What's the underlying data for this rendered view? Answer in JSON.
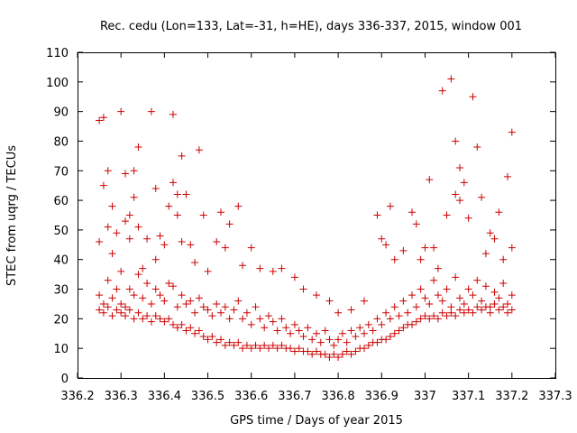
{
  "chart_data": {
    "type": "scatter",
    "title": "Rec. cedu (Lon=133, Lat=-31, h=HE), days 336-337, 2015, window 001",
    "xlabel": "GPS time / Days of year 2015",
    "ylabel": "STEC from uqrg / TECUs",
    "xlim": [
      336.2,
      337.3
    ],
    "ylim": [
      0,
      110
    ],
    "xticks": [
      "336.2",
      "336.3",
      "336.4",
      "336.5",
      "336.6",
      "336.7",
      "336.8",
      "336.9",
      "337",
      "337.1",
      "337.2",
      "337.3"
    ],
    "yticks": [
      "0",
      "10",
      "20",
      "30",
      "40",
      "50",
      "60",
      "70",
      "80",
      "90",
      "100",
      "110"
    ],
    "grid": false,
    "legend": "none",
    "marker": "plus",
    "color": "#cc0000",
    "series": [
      {
        "points": [
          [
            336.25,
            46
          ],
          [
            336.25,
            87
          ],
          [
            336.26,
            88
          ],
          [
            336.26,
            65
          ],
          [
            336.27,
            70
          ],
          [
            336.27,
            51
          ],
          [
            336.28,
            58
          ],
          [
            336.28,
            42
          ],
          [
            336.29,
            49
          ],
          [
            336.3,
            90
          ],
          [
            336.3,
            36
          ],
          [
            336.31,
            69
          ],
          [
            336.31,
            53
          ],
          [
            336.32,
            55
          ],
          [
            336.32,
            47
          ],
          [
            336.33,
            70
          ],
          [
            336.33,
            61
          ],
          [
            336.34,
            78
          ],
          [
            336.34,
            51
          ],
          [
            336.35,
            37
          ],
          [
            336.36,
            47
          ],
          [
            336.37,
            90
          ],
          [
            336.38,
            64
          ],
          [
            336.38,
            40
          ],
          [
            336.39,
            48
          ],
          [
            336.4,
            45
          ],
          [
            336.41,
            58
          ],
          [
            336.42,
            89
          ],
          [
            336.42,
            66
          ],
          [
            336.43,
            62
          ],
          [
            336.43,
            55
          ],
          [
            336.44,
            75
          ],
          [
            336.44,
            46
          ],
          [
            336.45,
            62
          ],
          [
            336.46,
            45
          ],
          [
            336.47,
            39
          ],
          [
            336.48,
            77
          ],
          [
            336.49,
            55
          ],
          [
            336.5,
            36
          ],
          [
            336.52,
            46
          ],
          [
            336.53,
            56
          ],
          [
            336.54,
            44
          ],
          [
            336.55,
            52
          ],
          [
            336.57,
            58
          ],
          [
            336.58,
            38
          ],
          [
            336.6,
            44
          ],
          [
            336.62,
            37
          ],
          [
            336.65,
            36
          ],
          [
            336.67,
            37
          ],
          [
            336.7,
            34
          ],
          [
            336.72,
            30
          ],
          [
            336.75,
            28
          ],
          [
            336.78,
            26
          ],
          [
            336.8,
            22
          ],
          [
            336.83,
            23
          ],
          [
            336.86,
            26
          ],
          [
            336.89,
            55
          ],
          [
            336.9,
            47
          ],
          [
            336.91,
            45
          ],
          [
            336.92,
            58
          ],
          [
            336.93,
            40
          ],
          [
            336.95,
            43
          ],
          [
            336.97,
            56
          ],
          [
            336.98,
            52
          ],
          [
            336.99,
            40
          ],
          [
            337.0,
            44
          ],
          [
            337.01,
            67
          ],
          [
            337.02,
            44
          ],
          [
            337.03,
            37
          ],
          [
            337.04,
            97
          ],
          [
            337.05,
            55
          ],
          [
            337.06,
            101
          ],
          [
            337.07,
            62
          ],
          [
            337.07,
            80
          ],
          [
            337.08,
            71
          ],
          [
            337.08,
            60
          ],
          [
            337.09,
            66
          ],
          [
            337.1,
            54
          ],
          [
            337.11,
            95
          ],
          [
            337.12,
            78
          ],
          [
            337.13,
            61
          ],
          [
            337.14,
            42
          ],
          [
            337.15,
            49
          ],
          [
            337.16,
            47
          ],
          [
            337.17,
            56
          ],
          [
            337.18,
            40
          ],
          [
            337.19,
            68
          ],
          [
            337.2,
            83
          ],
          [
            337.2,
            44
          ],
          [
            336.25,
            28
          ],
          [
            336.26,
            25
          ],
          [
            336.27,
            33
          ],
          [
            336.28,
            27
          ],
          [
            336.29,
            30
          ],
          [
            336.3,
            25
          ],
          [
            336.31,
            24
          ],
          [
            336.32,
            30
          ],
          [
            336.33,
            28
          ],
          [
            336.34,
            35
          ],
          [
            336.35,
            27
          ],
          [
            336.36,
            32
          ],
          [
            336.37,
            25
          ],
          [
            336.38,
            30
          ],
          [
            336.39,
            28
          ],
          [
            336.4,
            26
          ],
          [
            336.41,
            32
          ],
          [
            336.42,
            31
          ],
          [
            336.43,
            24
          ],
          [
            336.44,
            28
          ],
          [
            336.45,
            25
          ],
          [
            336.46,
            26
          ],
          [
            336.47,
            22
          ],
          [
            336.48,
            27
          ],
          [
            336.49,
            24
          ],
          [
            336.5,
            23
          ],
          [
            336.51,
            21
          ],
          [
            336.52,
            25
          ],
          [
            336.53,
            22
          ],
          [
            336.54,
            24
          ],
          [
            336.55,
            20
          ],
          [
            336.56,
            23
          ],
          [
            336.57,
            26
          ],
          [
            336.58,
            20
          ],
          [
            336.59,
            22
          ],
          [
            336.6,
            18
          ],
          [
            336.61,
            24
          ],
          [
            336.62,
            20
          ],
          [
            336.63,
            17
          ],
          [
            336.64,
            21
          ],
          [
            336.65,
            19
          ],
          [
            336.66,
            16
          ],
          [
            336.67,
            20
          ],
          [
            336.68,
            17
          ],
          [
            336.69,
            15
          ],
          [
            336.7,
            18
          ],
          [
            336.71,
            16
          ],
          [
            336.72,
            14
          ],
          [
            336.73,
            17
          ],
          [
            336.74,
            13
          ],
          [
            336.75,
            15
          ],
          [
            336.76,
            12
          ],
          [
            336.77,
            16
          ],
          [
            336.78,
            13
          ],
          [
            336.79,
            11
          ],
          [
            336.8,
            13
          ],
          [
            336.81,
            15
          ],
          [
            336.82,
            12
          ],
          [
            336.83,
            16
          ],
          [
            336.84,
            14
          ],
          [
            336.85,
            17
          ],
          [
            336.86,
            15
          ],
          [
            336.87,
            18
          ],
          [
            336.88,
            16
          ],
          [
            336.89,
            20
          ],
          [
            336.9,
            18
          ],
          [
            336.91,
            22
          ],
          [
            336.92,
            20
          ],
          [
            336.93,
            24
          ],
          [
            336.94,
            21
          ],
          [
            336.95,
            26
          ],
          [
            336.96,
            22
          ],
          [
            336.97,
            28
          ],
          [
            336.98,
            24
          ],
          [
            336.99,
            30
          ],
          [
            337.0,
            27
          ],
          [
            337.01,
            25
          ],
          [
            337.02,
            33
          ],
          [
            337.03,
            28
          ],
          [
            337.04,
            26
          ],
          [
            337.05,
            30
          ],
          [
            337.06,
            24
          ],
          [
            337.07,
            34
          ],
          [
            337.08,
            27
          ],
          [
            337.09,
            25
          ],
          [
            337.1,
            30
          ],
          [
            337.11,
            28
          ],
          [
            337.12,
            33
          ],
          [
            337.13,
            26
          ],
          [
            337.14,
            31
          ],
          [
            337.15,
            24
          ],
          [
            337.16,
            29
          ],
          [
            337.17,
            27
          ],
          [
            337.18,
            32
          ],
          [
            337.19,
            25
          ],
          [
            337.2,
            28
          ],
          [
            336.25,
            23
          ],
          [
            336.26,
            22
          ],
          [
            336.27,
            24
          ],
          [
            336.28,
            21
          ],
          [
            336.29,
            23
          ],
          [
            336.3,
            22
          ],
          [
            336.31,
            21
          ],
          [
            336.32,
            23
          ],
          [
            336.33,
            20
          ],
          [
            336.34,
            22
          ],
          [
            336.35,
            20
          ],
          [
            336.36,
            21
          ],
          [
            336.37,
            19
          ],
          [
            336.38,
            21
          ],
          [
            336.39,
            20
          ],
          [
            336.4,
            19
          ],
          [
            336.41,
            20
          ],
          [
            336.42,
            18
          ],
          [
            336.43,
            17
          ],
          [
            336.44,
            18
          ],
          [
            336.45,
            16
          ],
          [
            336.46,
            17
          ],
          [
            336.47,
            15
          ],
          [
            336.48,
            16
          ],
          [
            336.49,
            14
          ],
          [
            336.5,
            13
          ],
          [
            336.51,
            14
          ],
          [
            336.52,
            12
          ],
          [
            336.53,
            13
          ],
          [
            336.54,
            11
          ],
          [
            336.55,
            12
          ],
          [
            336.56,
            11
          ],
          [
            336.57,
            12
          ],
          [
            336.58,
            10
          ],
          [
            336.59,
            11
          ],
          [
            336.6,
            10
          ],
          [
            336.61,
            11
          ],
          [
            336.62,
            10
          ],
          [
            336.63,
            11
          ],
          [
            336.64,
            10
          ],
          [
            336.65,
            11
          ],
          [
            336.66,
            10
          ],
          [
            336.67,
            11
          ],
          [
            336.68,
            10
          ],
          [
            336.69,
            10
          ],
          [
            336.7,
            9
          ],
          [
            336.71,
            10
          ],
          [
            336.72,
            9
          ],
          [
            336.73,
            9
          ],
          [
            336.74,
            8
          ],
          [
            336.75,
            9
          ],
          [
            336.76,
            8
          ],
          [
            336.77,
            8
          ],
          [
            336.78,
            7
          ],
          [
            336.79,
            8
          ],
          [
            336.8,
            7
          ],
          [
            336.81,
            8
          ],
          [
            336.82,
            9
          ],
          [
            336.83,
            8
          ],
          [
            336.84,
            9
          ],
          [
            336.85,
            10
          ],
          [
            336.86,
            10
          ],
          [
            336.87,
            11
          ],
          [
            336.88,
            12
          ],
          [
            336.89,
            12
          ],
          [
            336.9,
            13
          ],
          [
            336.91,
            13
          ],
          [
            336.92,
            14
          ],
          [
            336.93,
            15
          ],
          [
            336.94,
            16
          ],
          [
            336.95,
            17
          ],
          [
            336.96,
            18
          ],
          [
            336.97,
            18
          ],
          [
            336.98,
            19
          ],
          [
            336.99,
            20
          ],
          [
            337.0,
            21
          ],
          [
            337.01,
            20
          ],
          [
            337.02,
            21
          ],
          [
            337.03,
            20
          ],
          [
            337.04,
            22
          ],
          [
            337.05,
            21
          ],
          [
            337.06,
            22
          ],
          [
            337.07,
            21
          ],
          [
            337.08,
            23
          ],
          [
            337.09,
            22
          ],
          [
            337.1,
            23
          ],
          [
            337.11,
            22
          ],
          [
            337.12,
            24
          ],
          [
            337.13,
            23
          ],
          [
            337.14,
            24
          ],
          [
            337.15,
            22
          ],
          [
            337.16,
            25
          ],
          [
            337.17,
            23
          ],
          [
            337.18,
            24
          ],
          [
            337.19,
            22
          ],
          [
            337.2,
            23
          ]
        ]
      }
    ]
  }
}
